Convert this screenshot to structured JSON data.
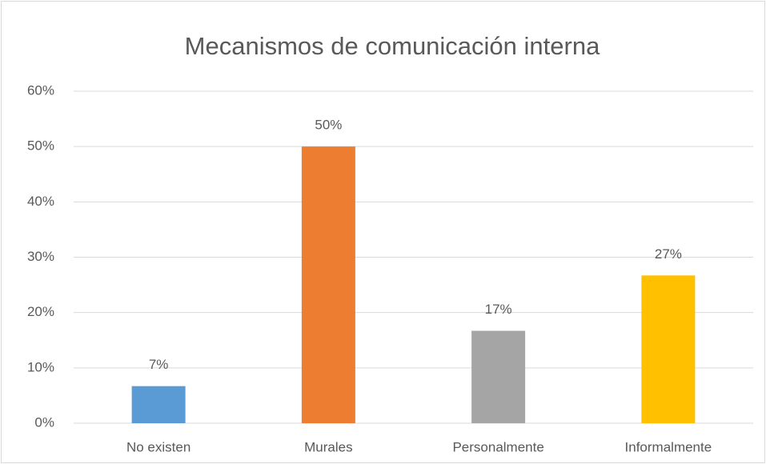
{
  "chart_data": {
    "type": "bar",
    "title": "Mecanismos de comunicación interna",
    "categories": [
      "No existen",
      "Murales",
      "Personalmente",
      "Informalmente"
    ],
    "values": [
      6.7,
      50,
      16.7,
      26.7
    ],
    "value_labels": [
      "7%",
      "50%",
      "17%",
      "27%"
    ],
    "colors": [
      "#5b9bd5",
      "#ed7d31",
      "#a5a5a5",
      "#ffc000"
    ],
    "ylim": [
      0,
      60
    ],
    "yticks": [
      {
        "value": 0,
        "label": "0%"
      },
      {
        "value": 10,
        "label": "10%"
      },
      {
        "value": 20,
        "label": "20%"
      },
      {
        "value": 30,
        "label": "30%"
      },
      {
        "value": 40,
        "label": "40%"
      },
      {
        "value": 50,
        "label": "50%"
      },
      {
        "value": 60,
        "label": "60%"
      }
    ],
    "grid": true
  }
}
